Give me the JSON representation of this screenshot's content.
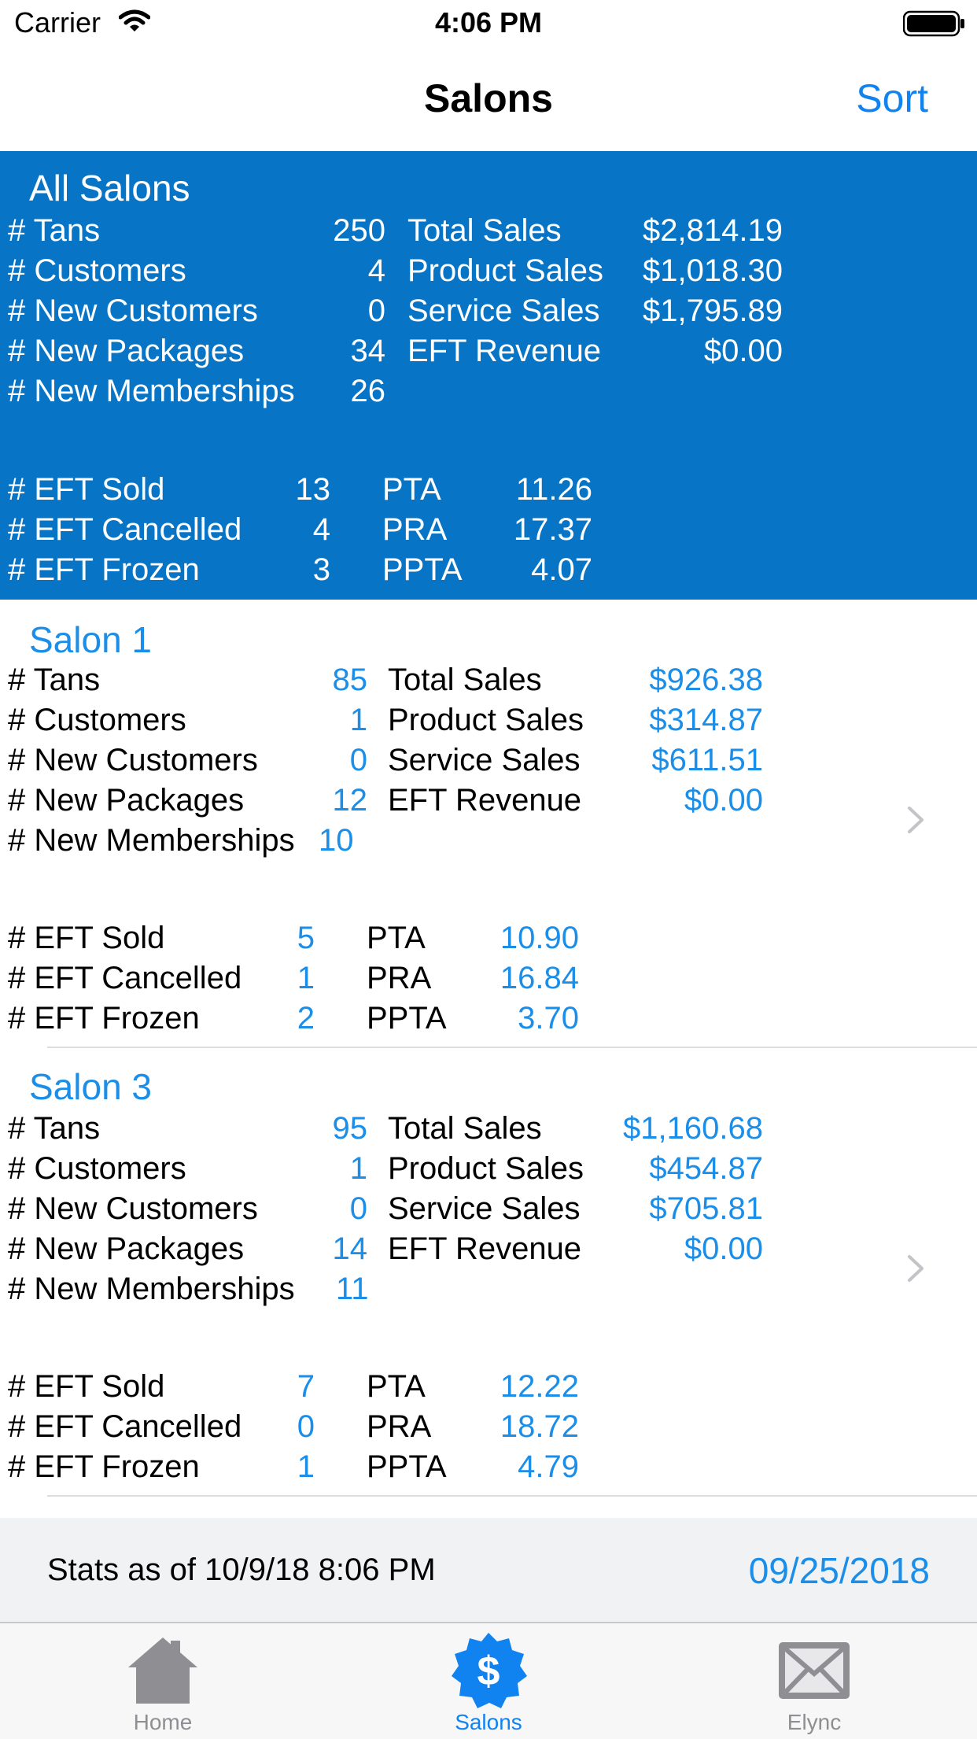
{
  "status_bar": {
    "carrier": "Carrier",
    "time": "4:06 PM"
  },
  "nav": {
    "title": "Salons",
    "sort_label": "Sort"
  },
  "summary": {
    "title": "All Salons",
    "left_rows": [
      {
        "label": "# Tans",
        "value": "250"
      },
      {
        "label": "# Customers",
        "value": "4"
      },
      {
        "label": "# New Customers",
        "value": "0"
      },
      {
        "label": "# New Packages",
        "value": "34"
      },
      {
        "label": "# New Memberships",
        "value": "26"
      }
    ],
    "right_rows": [
      {
        "label": "Total Sales",
        "value": "$2,814.19"
      },
      {
        "label": "Product Sales",
        "value": "$1,018.30"
      },
      {
        "label": "Service Sales",
        "value": "$1,795.89"
      },
      {
        "label": "EFT Revenue",
        "value": "$0.00"
      }
    ],
    "eft_rows": [
      {
        "label": "# EFT Sold",
        "value": "13",
        "metric": "PTA",
        "metric_value": "11.26"
      },
      {
        "label": "# EFT Cancelled",
        "value": "4",
        "metric": "PRA",
        "metric_value": "17.37"
      },
      {
        "label": "# EFT Frozen",
        "value": "3",
        "metric": "PPTA",
        "metric_value": "4.07"
      }
    ]
  },
  "salons": [
    {
      "title": "Salon 1",
      "left_rows": [
        {
          "label": "# Tans",
          "value": "85"
        },
        {
          "label": "# Customers",
          "value": "1"
        },
        {
          "label": "# New Customers",
          "value": "0"
        },
        {
          "label": "# New Packages",
          "value": "12"
        },
        {
          "label": "# New Memberships",
          "value": "10"
        }
      ],
      "right_rows": [
        {
          "label": "Total Sales",
          "value": "$926.38"
        },
        {
          "label": "Product Sales",
          "value": "$314.87"
        },
        {
          "label": "Service Sales",
          "value": "$611.51"
        },
        {
          "label": "EFT Revenue",
          "value": "$0.00"
        }
      ],
      "eft_rows": [
        {
          "label": "# EFT Sold",
          "value": "5",
          "metric": "PTA",
          "metric_value": "10.90"
        },
        {
          "label": "# EFT Cancelled",
          "value": "1",
          "metric": "PRA",
          "metric_value": "16.84"
        },
        {
          "label": "# EFT Frozen",
          "value": "2",
          "metric": "PPTA",
          "metric_value": "3.70"
        }
      ]
    },
    {
      "title": "Salon 3",
      "left_rows": [
        {
          "label": "# Tans",
          "value": "95"
        },
        {
          "label": "# Customers",
          "value": "1"
        },
        {
          "label": "# New Customers",
          "value": "0"
        },
        {
          "label": "# New Packages",
          "value": "14"
        },
        {
          "label": "# New Memberships",
          "value": "11"
        }
      ],
      "right_rows": [
        {
          "label": "Total Sales",
          "value": "$1,160.68"
        },
        {
          "label": "Product Sales",
          "value": "$454.87"
        },
        {
          "label": "Service Sales",
          "value": "$705.81"
        },
        {
          "label": "EFT Revenue",
          "value": "$0.00"
        }
      ],
      "eft_rows": [
        {
          "label": "# EFT Sold",
          "value": "7",
          "metric": "PTA",
          "metric_value": "12.22"
        },
        {
          "label": "# EFT Cancelled",
          "value": "0",
          "metric": "PRA",
          "metric_value": "18.72"
        },
        {
          "label": "# EFT Frozen",
          "value": "1",
          "metric": "PPTA",
          "metric_value": "4.79"
        }
      ]
    }
  ],
  "footer": {
    "stats_text": "Stats as of 10/9/18 8:06 PM",
    "date": "09/25/2018"
  },
  "tabs": [
    {
      "label": "Home",
      "icon": "house-icon"
    },
    {
      "label": "Salons",
      "icon": "dollar-badge-icon"
    },
    {
      "label": "Elync",
      "icon": "envelope-icon"
    }
  ],
  "colors": {
    "accent": "#1183f0",
    "summary_bg": "#0774c6",
    "value_blue": "#1a8ee8",
    "tab_inactive": "#8e8e93"
  }
}
